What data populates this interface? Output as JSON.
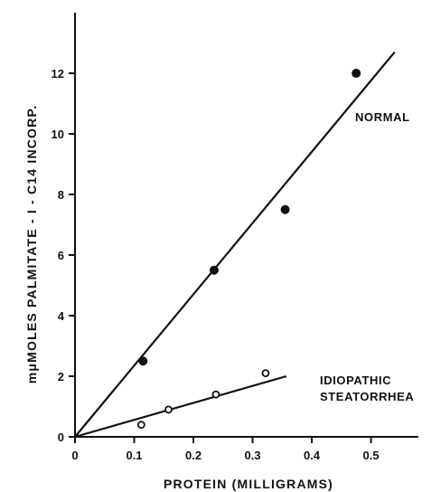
{
  "chart_data": {
    "type": "scatter",
    "title": "",
    "xlabel": "PROTEIN (MILLIGRAMS)",
    "ylabel": "mμMOLES PALMITATE - I - C14 INCORP.",
    "xlim": [
      0,
      0.58
    ],
    "ylim": [
      0,
      14
    ],
    "xticks": [
      0,
      0.1,
      0.2,
      0.3,
      0.4,
      0.5
    ],
    "xtick_labels": [
      "0",
      "0.1",
      "0.2",
      "0.3",
      "0.4",
      "0.5"
    ],
    "yticks": [
      0,
      2,
      4,
      6,
      8,
      10,
      12
    ],
    "ytick_labels": [
      "0",
      "2",
      "4",
      "6",
      "8",
      "10",
      "12"
    ],
    "grid": false,
    "series": [
      {
        "name": "NORMAL",
        "marker": "filled-circle",
        "color": "#111111",
        "points": [
          [
            0.115,
            2.5
          ],
          [
            0.235,
            5.5
          ],
          [
            0.355,
            7.5
          ],
          [
            0.475,
            12.0
          ]
        ],
        "fit_line": [
          [
            0,
            0
          ],
          [
            0.54,
            12.7
          ]
        ]
      },
      {
        "name": "IDIOPATHIC STEATORRHEA",
        "label_lines": [
          "IDIOPATHIC",
          "STEATORRHEA"
        ],
        "marker": "open-circle",
        "color": "#111111",
        "points": [
          [
            0.112,
            0.4
          ],
          [
            0.158,
            0.9
          ],
          [
            0.238,
            1.4
          ],
          [
            0.322,
            2.1
          ]
        ],
        "fit_line": [
          [
            0,
            0
          ],
          [
            0.357,
            2.0
          ]
        ]
      }
    ]
  }
}
